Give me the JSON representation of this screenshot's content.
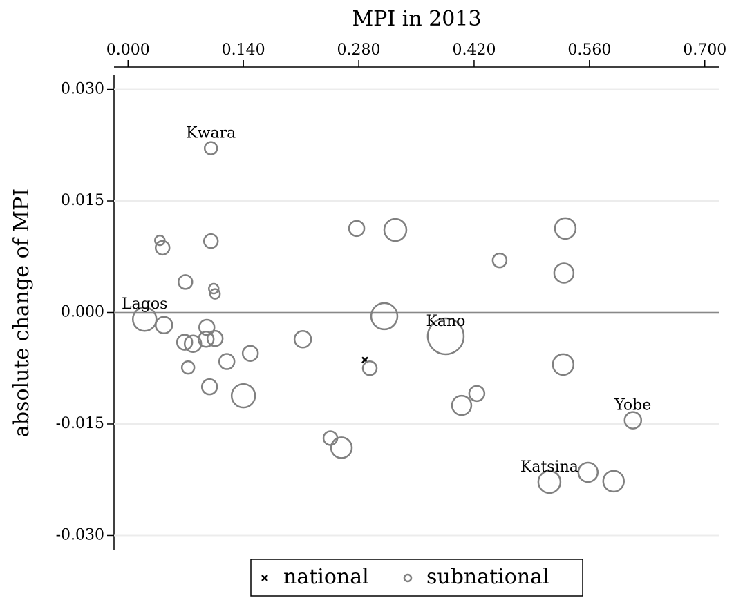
{
  "chart_data": {
    "type": "scatter",
    "x_label": "MPI in 2013",
    "y_label": "absolute change of MPI",
    "xlim": [
      -0.017,
      0.717
    ],
    "ylim": [
      -0.032,
      0.032
    ],
    "xticks": [
      {
        "value": 0,
        "label": "0.000"
      },
      {
        "value": 0.14,
        "label": "0.140"
      },
      {
        "value": 0.28,
        "label": "0.280"
      },
      {
        "value": 0.42,
        "label": "0.420"
      },
      {
        "value": 0.56,
        "label": "0.560"
      },
      {
        "value": 0.7,
        "label": "0.700"
      }
    ],
    "yticks": [
      {
        "value": 0.03,
        "label": "0.030"
      },
      {
        "value": 0.015,
        "label": "0.015"
      },
      {
        "value": 0,
        "label": "0.000"
      },
      {
        "value": -0.015,
        "label": "-0.015"
      },
      {
        "value": -0.03,
        "label": "-0.030"
      }
    ],
    "grid": true,
    "zero_line": true,
    "x_axis_position": "top",
    "legend": "bottom",
    "series": [
      {
        "name": "national",
        "color": "#000000",
        "marker": "x",
        "x": [
          0.2875
        ],
        "values": [
          -0.0064
        ]
      },
      {
        "name": "subnational",
        "color": "#808080",
        "marker": "o",
        "x": [
          0.1006,
          0.0386,
          0.0419,
          0.1006,
          0.0696,
          0.104,
          0.1056,
          0.0201,
          0.0436,
          0.0956,
          0.0687,
          0.0788,
          0.0947,
          0.1056,
          0.0729,
          0.1199,
          0.1484,
          0.0989,
          0.14,
          0.2121,
          0.2775,
          0.3244,
          0.311,
          0.2934,
          0.2456,
          0.259,
          0.3856,
          0.4049,
          0.4233,
          0.451,
          0.5307,
          0.529,
          0.5281,
          0.6128,
          0.5583,
          0.5893,
          0.5114
        ],
        "values": [
          0.0221,
          0.0097,
          0.0087,
          0.0096,
          0.0041,
          0.0032,
          0.0025,
          -0.0009,
          -0.0017,
          -0.002,
          -0.004,
          -0.0042,
          -0.0036,
          -0.0035,
          -0.0074,
          -0.0066,
          -0.0055,
          -0.01,
          -0.0112,
          -0.0036,
          0.0113,
          0.0111,
          -0.0005,
          -0.0075,
          -0.0169,
          -0.0182,
          -0.0032,
          -0.0125,
          -0.0109,
          0.007,
          0.0113,
          0.0053,
          -0.007,
          -0.0145,
          -0.0215,
          -0.0227,
          -0.0228
        ],
        "sizes": [
          9,
          7,
          10,
          10,
          10,
          7,
          7,
          17,
          12,
          11,
          11,
          12,
          11,
          11,
          9,
          11,
          11,
          11,
          17,
          12,
          11,
          16,
          19,
          10,
          10,
          15,
          26,
          14,
          11,
          10,
          15,
          14,
          15,
          12,
          14,
          15,
          16
        ],
        "labels": [
          "Kwara",
          null,
          null,
          null,
          null,
          null,
          null,
          "Lagos",
          null,
          null,
          null,
          null,
          null,
          null,
          null,
          null,
          null,
          null,
          null,
          null,
          null,
          null,
          null,
          null,
          null,
          null,
          "Kano",
          null,
          null,
          null,
          null,
          null,
          null,
          "Yobe",
          null,
          null,
          "Katsina"
        ]
      }
    ]
  }
}
